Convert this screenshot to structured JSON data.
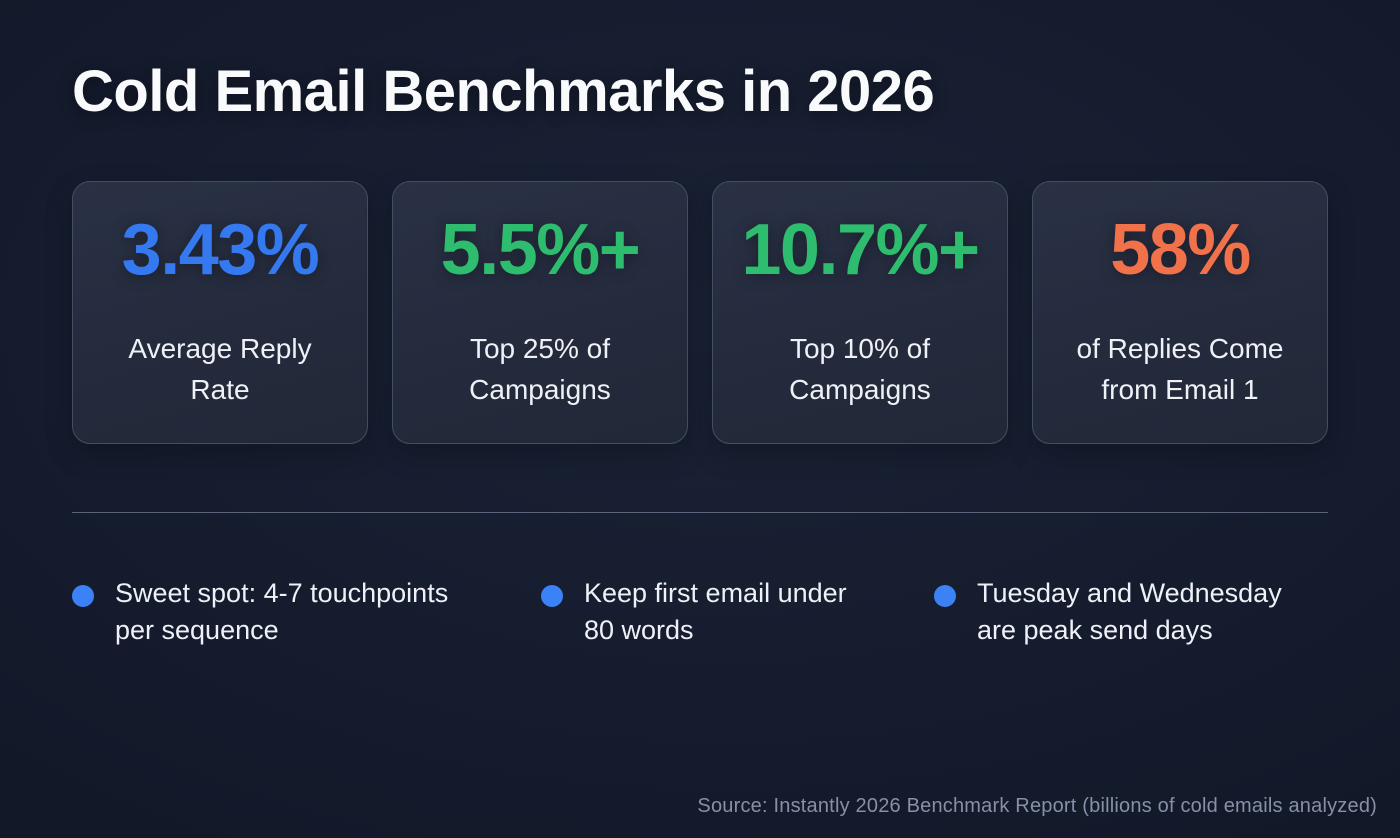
{
  "page": {
    "title": "Cold Email Benchmarks in 2026",
    "source_note": "Source: Instantly 2026 Benchmark Report (billions of cold emails analyzed)"
  },
  "colors": {
    "background": "#151c2e",
    "card_background": "#242b3d",
    "card_border": "#434d63",
    "stat_blue": "#3579f0",
    "stat_green": "#2ebd6e",
    "stat_orange": "#f0714a",
    "bullet_dot_blue": "#3b82f6",
    "text_primary": "#f5f7fa",
    "text_muted": "#8690a6"
  },
  "stats": [
    {
      "value": "3.43%",
      "label": "Average Reply\nRate",
      "color": "#3579f0"
    },
    {
      "value": "5.5%+",
      "label": "Top 25% of\nCampaigns",
      "color": "#2ebd6e"
    },
    {
      "value": "10.7%+",
      "label": "Top 10% of\nCampaigns",
      "color": "#2ebd6e"
    },
    {
      "value": "58%",
      "label": "of Replies Come\nfrom Email 1",
      "color": "#f0714a"
    }
  ],
  "tips": [
    {
      "text": "Sweet spot: 4-7 touchpoints\nper sequence",
      "dot_color": "#3b82f6"
    },
    {
      "text": "Keep first email under\n80 words",
      "dot_color": "#3b82f6"
    },
    {
      "text": "Tuesday and Wednesday\nare peak send days",
      "dot_color": "#3b82f6"
    }
  ]
}
